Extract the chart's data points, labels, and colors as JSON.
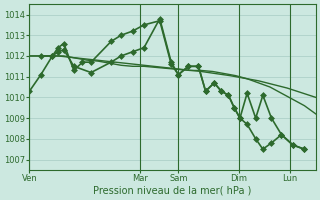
{
  "bg_color": "#cce8e0",
  "line_color": "#2d6a2d",
  "grid_color": "#a8ccc4",
  "xlabel": "Pression niveau de la mer( hPa )",
  "ylim": [
    1006.5,
    1014.5
  ],
  "yticks": [
    1007,
    1008,
    1009,
    1010,
    1011,
    1012,
    1013,
    1014
  ],
  "day_labels": [
    "Ven",
    "Mar",
    "Sam",
    "Dim",
    "Lun"
  ],
  "day_positions": [
    0.0,
    0.385,
    0.52,
    0.73,
    0.91
  ],
  "xlim": [
    0.0,
    1.0
  ],
  "series": [
    {
      "x": [
        0.0,
        0.04,
        0.08,
        0.1,
        0.12,
        0.155,
        0.185,
        0.215,
        0.285,
        0.32,
        0.36,
        0.4,
        0.455,
        0.495,
        0.52,
        0.555,
        0.59,
        0.615,
        0.645,
        0.67,
        0.695,
        0.715,
        0.735,
        0.76,
        0.79,
        0.815,
        0.845,
        0.88,
        0.92,
        0.96
      ],
      "y": [
        1010.3,
        1011.1,
        1012.0,
        1012.4,
        1012.6,
        1011.3,
        1011.7,
        1011.7,
        1012.7,
        1013.0,
        1013.2,
        1013.5,
        1013.7,
        1011.6,
        1011.1,
        1011.5,
        1011.5,
        1010.3,
        1010.7,
        1010.3,
        1010.1,
        1009.5,
        1009.0,
        1008.7,
        1008.0,
        1007.5,
        1007.8,
        1008.2,
        1007.7,
        1007.5
      ],
      "marker": true,
      "markersize": 3,
      "lw": 1.2
    },
    {
      "x": [
        0.0,
        0.04,
        0.08,
        0.12,
        0.16,
        0.2,
        0.24,
        0.28,
        0.32,
        0.36,
        0.4,
        0.44,
        0.48,
        0.52,
        0.56,
        0.6,
        0.64,
        0.68,
        0.72,
        0.76,
        0.8,
        0.84,
        0.88,
        0.92,
        0.96,
        1.0,
        1.0,
        1.0,
        1.0,
        1.0
      ],
      "y": [
        1012.0,
        1012.0,
        1012.0,
        1012.0,
        1011.9,
        1011.8,
        1011.75,
        1011.65,
        1011.55,
        1011.5,
        1011.5,
        1011.45,
        1011.4,
        1011.35,
        1011.3,
        1011.3,
        1011.25,
        1011.15,
        1011.05,
        1010.9,
        1010.7,
        1010.5,
        1010.2,
        1009.9,
        1009.6,
        1009.2,
        1009.2,
        1009.2,
        1009.2,
        1009.2
      ],
      "marker": false,
      "markersize": 2,
      "lw": 1.0
    },
    {
      "x": [
        0.0,
        0.1,
        0.2,
        0.3,
        0.4,
        0.5,
        0.6,
        0.7,
        0.8,
        0.9,
        1.0
      ],
      "y": [
        1012.0,
        1012.0,
        1011.85,
        1011.7,
        1011.55,
        1011.4,
        1011.25,
        1011.05,
        1010.8,
        1010.45,
        1010.0
      ],
      "marker": false,
      "markersize": 2,
      "lw": 1.0
    },
    {
      "x": [
        0.04,
        0.08,
        0.1,
        0.12,
        0.155,
        0.215,
        0.285,
        0.32,
        0.36,
        0.4,
        0.455,
        0.495,
        0.52,
        0.555,
        0.59,
        0.615,
        0.645,
        0.67,
        0.695,
        0.715,
        0.735,
        0.76,
        0.79,
        0.815,
        0.845,
        0.88,
        0.92,
        0.96
      ],
      "y": [
        1012.0,
        1012.0,
        1012.2,
        1012.3,
        1011.5,
        1011.2,
        1011.7,
        1012.0,
        1012.2,
        1012.4,
        1013.8,
        1011.7,
        1011.1,
        1011.5,
        1011.5,
        1010.3,
        1010.7,
        1010.3,
        1010.1,
        1009.5,
        1009.0,
        1010.2,
        1009.0,
        1010.1,
        1009.0,
        1008.2,
        1007.7,
        1007.5
      ],
      "marker": true,
      "markersize": 3,
      "lw": 1.2
    }
  ]
}
